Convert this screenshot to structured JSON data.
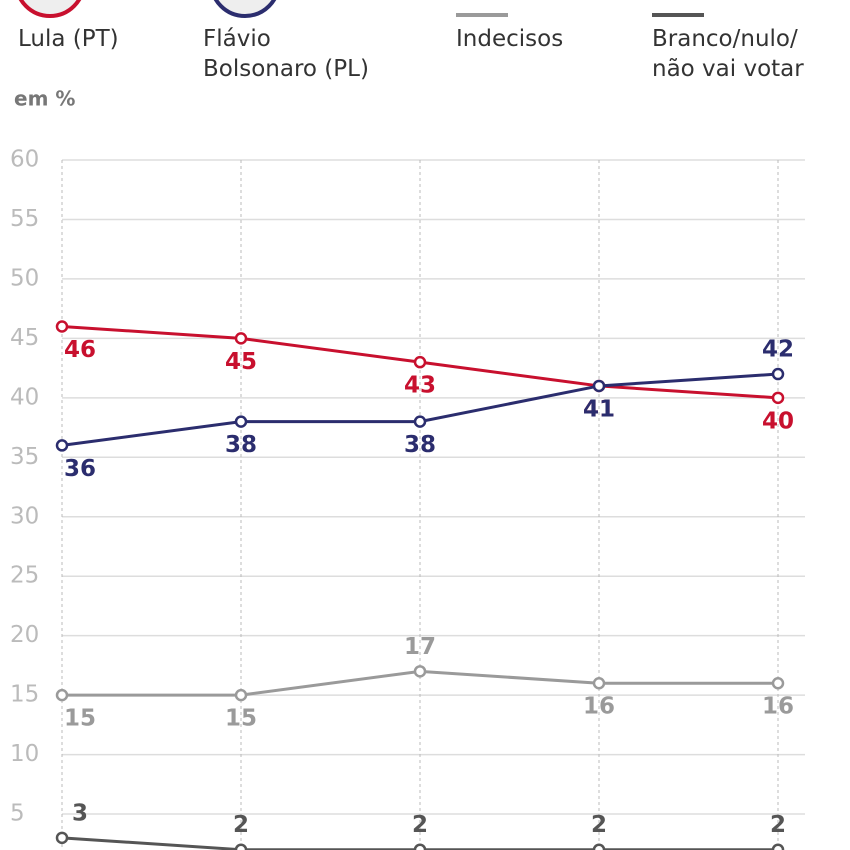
{
  "chart_data": {
    "type": "line",
    "y_label": "em %",
    "categories": [
      null,
      null,
      null,
      null,
      null
    ],
    "series": [
      {
        "name": "Lula (PT)",
        "color": "#c8102e",
        "values": [
          46,
          45,
          43,
          41,
          40
        ]
      },
      {
        "name": "Flávio\nBolsonaro (PL)",
        "color": "#2b2d6e",
        "values": [
          36,
          38,
          38,
          41,
          42
        ]
      },
      {
        "name": "Indecisos",
        "color": "#9a9a9a",
        "values": [
          15,
          15,
          17,
          16,
          16
        ]
      },
      {
        "name": "Branco/nulo/\nnão vai votar",
        "color": "#555555",
        "values": [
          3,
          2,
          2,
          2,
          2
        ]
      }
    ],
    "ylim": [
      0,
      60
    ],
    "yticks": [
      5,
      10,
      15,
      20,
      25,
      30,
      35,
      40,
      45,
      50,
      55,
      60
    ],
    "grid": true
  }
}
